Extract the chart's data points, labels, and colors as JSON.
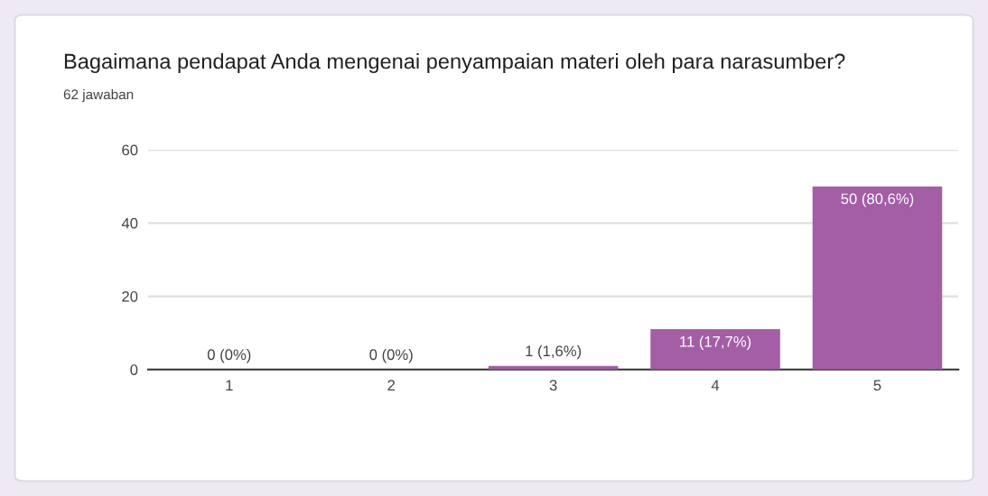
{
  "chart_data": {
    "type": "bar",
    "title": "Bagaimana pendapat Anda mengenai penyampaian materi oleh para narasumber?",
    "subtitle": "62 jawaban",
    "categories": [
      "1",
      "2",
      "3",
      "4",
      "5"
    ],
    "values": [
      0,
      0,
      1,
      11,
      50
    ],
    "value_labels": [
      "0 (0%)",
      "0 (0%)",
      "1 (1,6%)",
      "11 (17,7%)",
      "50 (80,6%)"
    ],
    "color": "#a35ea6",
    "ylim": [
      0,
      60
    ],
    "yticks": [
      0,
      20,
      40,
      60
    ],
    "grid": "y"
  }
}
